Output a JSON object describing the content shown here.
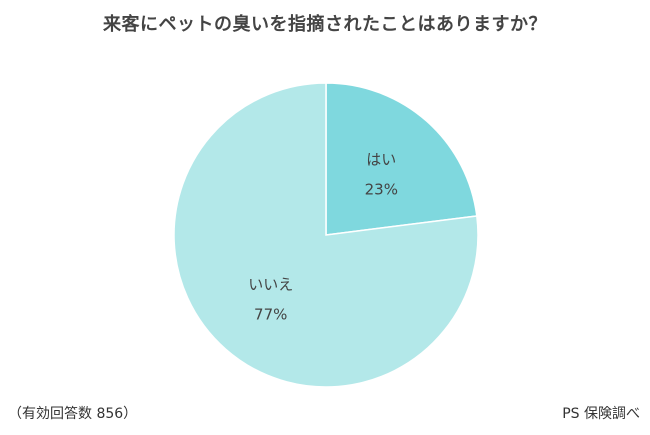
{
  "chart_data": {
    "type": "pie",
    "title": "来客にペットの臭いを指摘されたことはありますか？",
    "slices": [
      {
        "label": "はい",
        "value": 23,
        "value_label": "23%",
        "color": "#7fd8de"
      },
      {
        "label": "いいえ",
        "value": 77,
        "value_label": "77%",
        "color": "#b3e8e9"
      }
    ],
    "start_angle_deg": 0,
    "direction": "clockwise",
    "legend": "none"
  },
  "footnotes": {
    "sample": "（有効回答数 856）",
    "source": "PS 保険調べ"
  }
}
